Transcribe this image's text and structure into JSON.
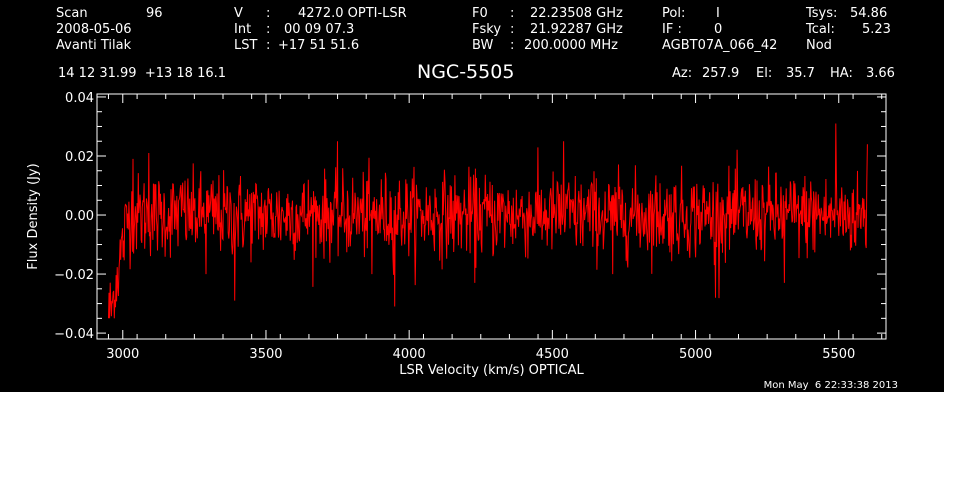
{
  "header": {
    "scan_label": "Scan",
    "scan_value": "96",
    "date": "2008-05-06",
    "observer": "Avanti Tilak",
    "v_label": "V",
    "v_value": "4272.0 OPTI-LSR",
    "int_label": "Int",
    "int_value": "00 09 07.3",
    "lst_label": "LST",
    "lst_value": "+17 51 51.6",
    "f0_label": "F0",
    "f0_value": "22.23508 GHz",
    "fsky_label": "Fsky",
    "fsky_value": "21.92287 GHz",
    "bw_label": "BW",
    "bw_value": "200.0000 MHz",
    "pol_label": "Pol:",
    "pol_value": "I",
    "if_label": "IF :",
    "if_value": "0",
    "project": "AGBT07A_066_42",
    "tsys_label": "Tsys:",
    "tsys_value": "54.86",
    "tcal_label": "Tcal:",
    "tcal_value": "5.23",
    "mode": "Nod",
    "coords": "14 12 31.99  +13 18 16.1",
    "source": "NGC-5505",
    "az_label": "Az:",
    "az_value": "257.9",
    "el_label": "El:",
    "el_value": "35.7",
    "ha_label": "HA:",
    "ha_value": "3.66"
  },
  "timestamp": "Mon May  6 22:33:38 2013",
  "colors": {
    "background": "#000000",
    "axes": "#ffffff",
    "trace": "#ff0000"
  },
  "chart_data": {
    "type": "line",
    "xlabel": "LSR Velocity (km/s) OPTICAL",
    "ylabel": "Flux Density (Jy)",
    "xlim": [
      2910,
      5665
    ],
    "ylim": [
      -0.042,
      0.041
    ],
    "xticks": [
      3000,
      3500,
      4000,
      4500,
      5000,
      5500
    ],
    "xtick_labels": [
      "3000",
      "3500",
      "4000",
      "4500",
      "5000",
      "5500"
    ],
    "yticks": [
      -0.04,
      -0.02,
      0.0,
      0.02,
      0.04
    ],
    "ytick_labels": [
      "−0.04",
      "−0.02",
      "0.00",
      "0.02",
      "0.04"
    ],
    "grid": false,
    "series": [
      {
        "color": "#ff0000",
        "x_range": [
          2950,
          5600
        ],
        "noise_rms_jy": 0.007,
        "points": 1300,
        "envelope_points": [
          {
            "x": 2955,
            "y": -0.033
          },
          {
            "x": 2965,
            "y": -0.03
          },
          {
            "x": 2980,
            "y": -0.02
          },
          {
            "x": 3000,
            "y": -0.01
          },
          {
            "x": 3020,
            "y": 0.0
          },
          {
            "x": 5600,
            "y": 0.0
          }
        ],
        "notable_values": [
          {
            "x": 3035,
            "y": 0.019
          },
          {
            "x": 3090,
            "y": 0.021
          },
          {
            "x": 3210,
            "y": 0.011
          },
          {
            "x": 3290,
            "y": -0.02
          },
          {
            "x": 3390,
            "y": -0.029
          },
          {
            "x": 3750,
            "y": 0.025
          },
          {
            "x": 3870,
            "y": -0.02
          },
          {
            "x": 3950,
            "y": -0.031
          },
          {
            "x": 4230,
            "y": -0.023
          },
          {
            "x": 4540,
            "y": 0.025
          },
          {
            "x": 4710,
            "y": -0.02
          },
          {
            "x": 5070,
            "y": -0.028
          },
          {
            "x": 5310,
            "y": -0.023
          },
          {
            "x": 5490,
            "y": 0.031
          },
          {
            "x": 5600,
            "y": 0.024
          }
        ]
      }
    ]
  }
}
